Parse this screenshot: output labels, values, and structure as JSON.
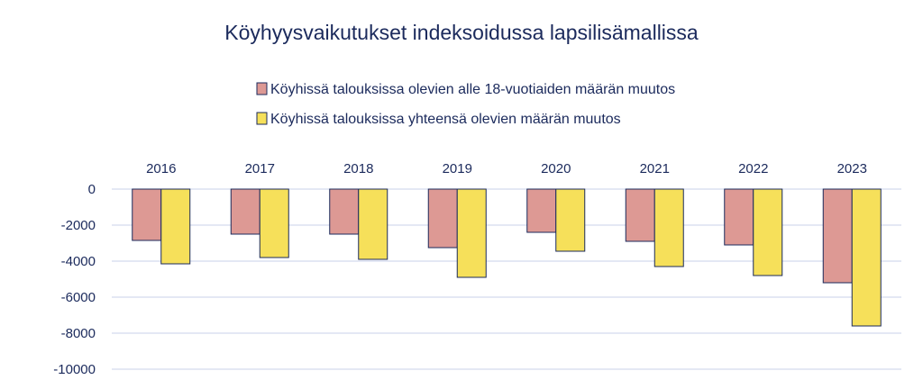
{
  "chart_data": {
    "type": "bar",
    "title": "Köyhyysvaikutukset indeksoidussa lapsilisämallissa",
    "categories": [
      "2016",
      "2017",
      "2018",
      "2019",
      "2020",
      "2021",
      "2022",
      "2023"
    ],
    "series": [
      {
        "name": "Köyhissä talouksissa olevien alle 18-vuotiaiden määrän muutos",
        "color": "#dd9994",
        "values": [
          -2850,
          -2500,
          -2500,
          -3250,
          -2400,
          -2900,
          -3100,
          -5200
        ]
      },
      {
        "name": "Köyhissä talouksissa yhteensä olevien määrän muutos",
        "color": "#f6e05a",
        "values": [
          -4150,
          -3800,
          -3900,
          -4900,
          -3450,
          -4300,
          -4800,
          -7600
        ]
      }
    ],
    "yticks": [
      "0",
      "-2000",
      "-4000",
      "-6000",
      "-8000",
      "-10000"
    ],
    "ylim": [
      -10000,
      0
    ],
    "category_labels_position": "top",
    "legend_position": "top",
    "grid": true
  }
}
